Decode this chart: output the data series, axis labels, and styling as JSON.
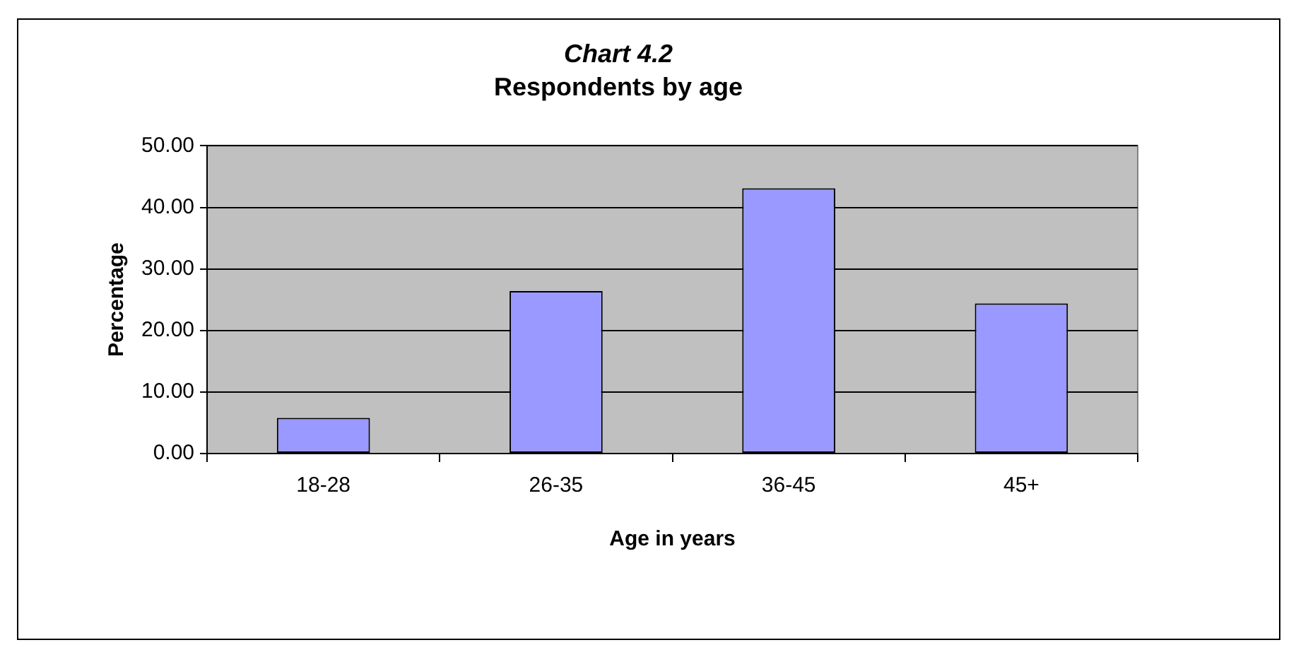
{
  "chart_data": {
    "type": "bar",
    "title": "Chart 4.2",
    "subtitle": "Respondents by age",
    "xlabel": "Age in years",
    "ylabel": "Percentage",
    "categories": [
      "18-28",
      "26-35",
      "36-45",
      "45+"
    ],
    "values": [
      5.8,
      26.4,
      43.1,
      24.4
    ],
    "color": "#9999ff",
    "ylim": [
      0,
      50
    ],
    "yticks": [
      {
        "value": 0,
        "label": "0.00"
      },
      {
        "value": 10,
        "label": "10.00"
      },
      {
        "value": 20,
        "label": "20.00"
      },
      {
        "value": 30,
        "label": "30.00"
      },
      {
        "value": 40,
        "label": "40.00"
      },
      {
        "value": 50,
        "label": "50.00"
      }
    ],
    "grid": "y"
  }
}
